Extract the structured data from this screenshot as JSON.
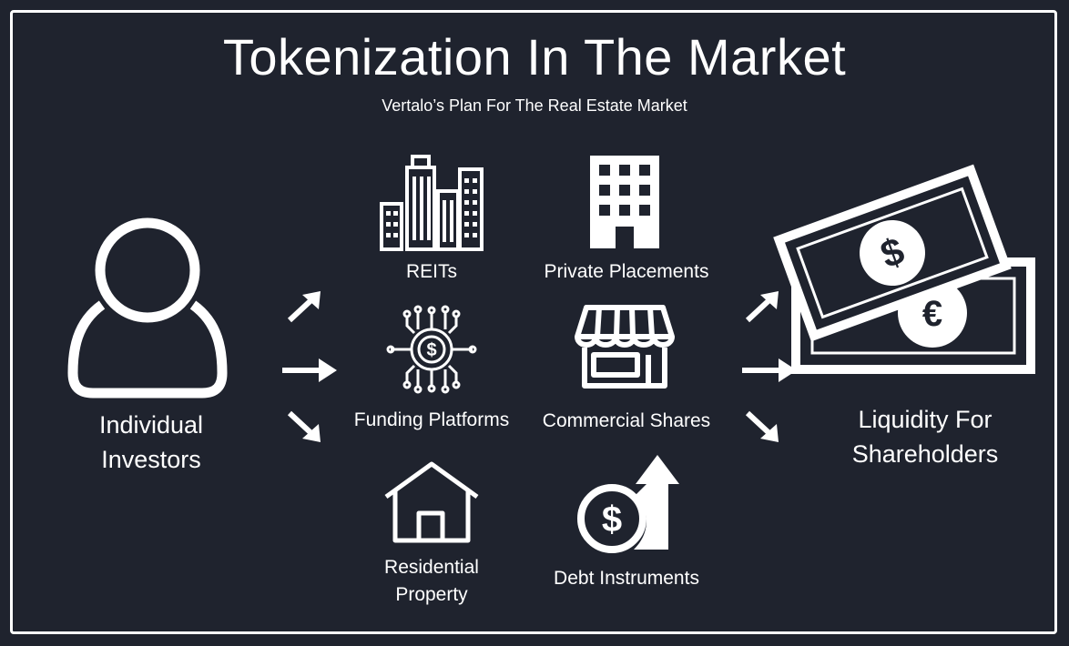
{
  "title": "Tokenization In The Market",
  "subtitle": "Vertalo’s Plan For The Real Estate Market",
  "source": {
    "label_line1": "Individual",
    "label_line2": "Investors",
    "icon": "person-icon"
  },
  "assets": {
    "reits": {
      "label": "REITs",
      "icon": "city-buildings-icon"
    },
    "private_placements": {
      "label": "Private Placements",
      "icon": "office-building-icon"
    },
    "funding_platforms": {
      "label": "Funding Platforms",
      "icon": "dollar-circuit-icon"
    },
    "commercial_shares": {
      "label": "Commercial Shares",
      "icon": "storefront-icon"
    },
    "residential_property": {
      "label_line1": "Residential",
      "label_line2": "Property",
      "icon": "house-icon"
    },
    "debt_instruments": {
      "label": "Debt Instruments",
      "icon": "dollar-up-arrow-icon"
    }
  },
  "outcome": {
    "label_line1": "Liquidity For",
    "label_line2": "Shareholders",
    "icon": "banknotes-icon",
    "symbol_dollar": "$",
    "symbol_euro": "€"
  },
  "colors": {
    "background": "#1f232e",
    "foreground": "#ffffff"
  }
}
